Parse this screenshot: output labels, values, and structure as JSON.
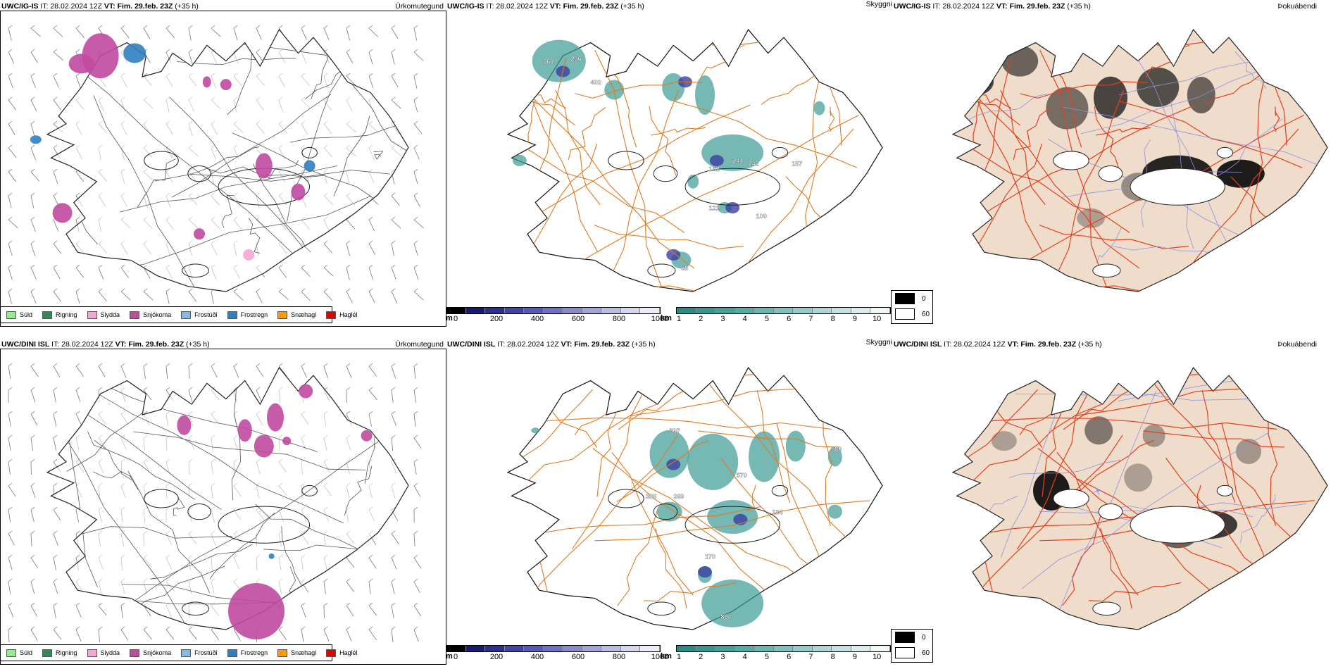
{
  "colors": {
    "sudd": "#90ee90",
    "rigning": "#2e8b57",
    "slydda": "#f4a6d2",
    "snjokoma": "#c04aa0",
    "frostudi": "#87b8e8",
    "frostregn": "#2f7fc0",
    "snaehagl": "#ff9900",
    "haglel": "#e00000",
    "cloud_teal": "#3a9a94",
    "cloud_blue": "#3b3fa0",
    "road_orange": "#e07a20",
    "land_beige": "#f0dccb",
    "road_red": "#e2401c"
  },
  "rows": [
    {
      "model": "UWC/IG-IS",
      "run": "IT: 28.02.2024 12Z",
      "vt_label": "VT:",
      "vt": "Fim. 29.feb. 23Z",
      "lead": "(+35 h)",
      "numbers": [
        "361",
        "256",
        "402",
        "152",
        "242",
        "157",
        "241",
        "121",
        "100",
        "58"
      ]
    },
    {
      "model": "UWC/DINI ISL",
      "run": "IT: 28.02.2024 12Z",
      "vt_label": "VT:",
      "vt": "Fim. 29.feb. 23Z",
      "lead": "(+35 h)",
      "numbers": [
        "507",
        "580",
        "570",
        "388",
        "269",
        "134",
        "170",
        "894"
      ]
    }
  ],
  "panel_titles": {
    "precip_type": "Úrkomutegund",
    "visibility": "Skyggni",
    "fog": "Þokuábendi"
  },
  "precip_legend": [
    {
      "label": "Súld",
      "color": "#90ee90"
    },
    {
      "label": "Rigning",
      "color": "#2e8b57"
    },
    {
      "label": "Slydda",
      "color": "#f4a6d2"
    },
    {
      "label": "Snjókoma",
      "color": "#c04aa0"
    },
    {
      "label": "Frostúði",
      "color": "#87b8e8"
    },
    {
      "label": "Frostregn",
      "color": "#2f7fc0"
    },
    {
      "label": "Snæhagl",
      "color": "#ff9900"
    },
    {
      "label": "Haglél",
      "color": "#e00000"
    }
  ],
  "ceiling_scale": {
    "unit": "m",
    "ticks": [
      "0",
      "200",
      "400",
      "600",
      "800",
      "1000"
    ]
  },
  "visibility_scale": {
    "unit": "km",
    "ticks": [
      "1",
      "2",
      "3",
      "4",
      "5",
      "6",
      "7",
      "8",
      "9",
      "10"
    ]
  },
  "fog_scale": {
    "min": "0",
    "max": "60"
  }
}
